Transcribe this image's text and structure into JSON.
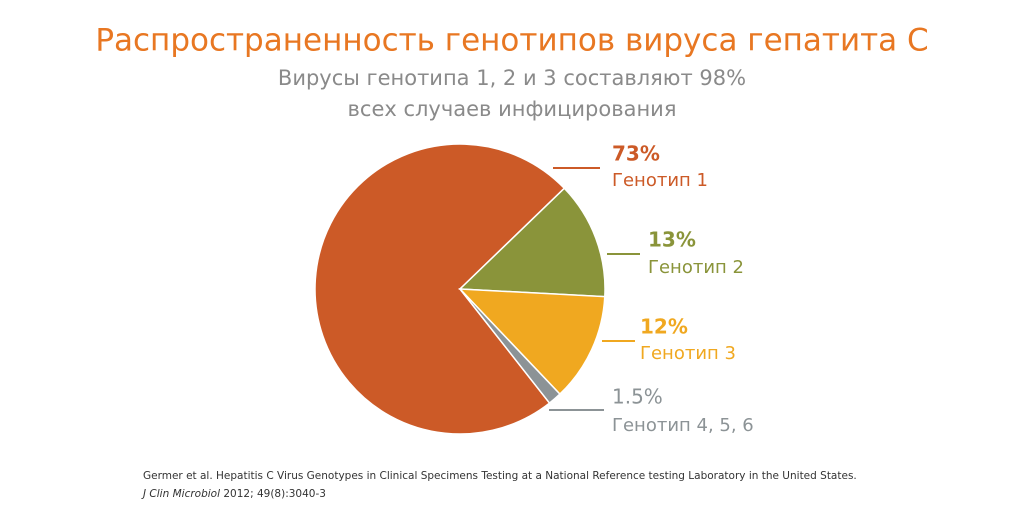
{
  "chart_data": {
    "type": "pie",
    "title": "Распространенность генотипов вируса гепатита С",
    "subtitle": [
      "Вирусы генотипа 1, 2 и 3 составляют 98%",
      "всех случаев инфицирования"
    ],
    "categories": [
      "Генотип 1",
      "Генотип 2",
      "Генотип 3",
      "Генотип 4, 5, 6"
    ],
    "values": [
      73,
      13,
      12,
      1.5
    ],
    "value_labels": [
      "73%",
      "13%",
      "12%",
      "1.5%"
    ],
    "colors": [
      "#cc5a27",
      "#8a943a",
      "#f0a820",
      "#8c9396"
    ],
    "source": [
      "Germer et al. Hepatitis C Virus Genotypes in Clinical Specimens Testing at a National Reference testing Laboratory in the United States.",
      "J Clin Microbiol",
      "2012; 49(8):3040-3"
    ]
  }
}
